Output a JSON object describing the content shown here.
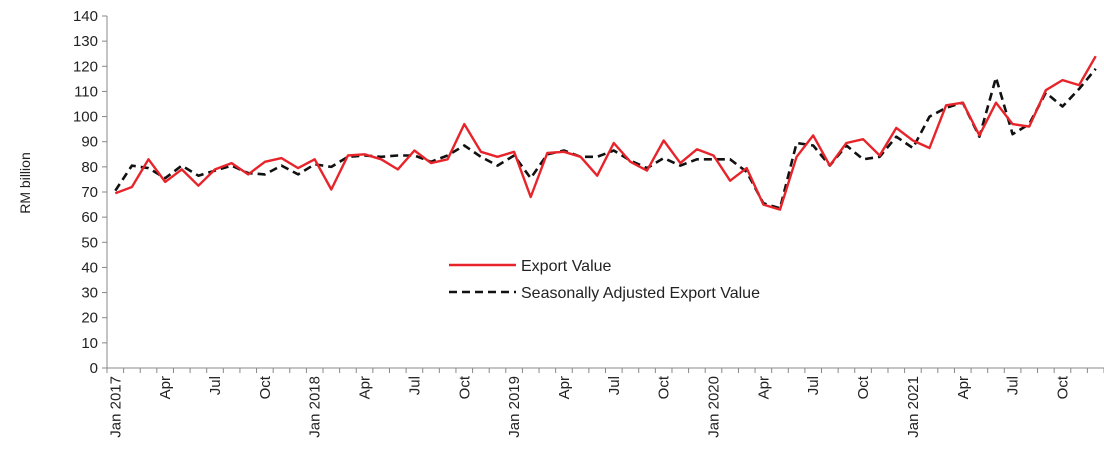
{
  "chart_data": {
    "type": "line",
    "title": "",
    "xlabel": "",
    "ylabel": "RM billion",
    "ylim": [
      0,
      140
    ],
    "yticks": [
      0,
      10,
      20,
      30,
      40,
      50,
      60,
      70,
      80,
      90,
      100,
      110,
      120,
      130,
      140
    ],
    "x_start": "Jan 2017",
    "x_ticks": [
      "Jan 2017",
      "Apr",
      "Jul",
      "Oct",
      "Jan 2018",
      "Apr",
      "Jul",
      "Oct",
      "Jan 2019",
      "Apr",
      "Jul",
      "Oct",
      "Jan 2020",
      "Apr",
      "Jul",
      "Oct",
      "Jan 2021",
      "Apr",
      "Jul",
      "Oct"
    ],
    "legend_position": "center",
    "grid": false,
    "series": [
      {
        "name": "Export Value",
        "color": "#e8242b",
        "style": "solid",
        "values": [
          69.5,
          72,
          83,
          74,
          79,
          72.5,
          79,
          81.5,
          77,
          82,
          83.5,
          79.5,
          83,
          71,
          84.5,
          85,
          83,
          79,
          86.5,
          81.5,
          83,
          97,
          86,
          84,
          86,
          68,
          85.5,
          86,
          84,
          76.5,
          89.5,
          82,
          78.5,
          90.5,
          81.5,
          87,
          84.5,
          74.5,
          79.5,
          65,
          63,
          84,
          92.5,
          80.5,
          89.5,
          91,
          84.5,
          95.5,
          90.5,
          87.5,
          104.5,
          105.5,
          92.5,
          105.5,
          97,
          96,
          110.5,
          114.5,
          112.5,
          124
        ]
      },
      {
        "name": "Seasonally Adjusted Export Value",
        "color": "#111111",
        "style": "dashed",
        "values": [
          70.5,
          80.5,
          79.5,
          75.5,
          80.5,
          76.5,
          78.5,
          80.5,
          77.5,
          77,
          80.5,
          77,
          81,
          80,
          84,
          84.5,
          84,
          84.5,
          84.5,
          82,
          84.5,
          88.5,
          84,
          80.5,
          84.5,
          75.5,
          85,
          86.5,
          84,
          84,
          86.5,
          82.5,
          79.5,
          83.5,
          80.5,
          83,
          83,
          83,
          78,
          65.5,
          63.5,
          89.5,
          88.5,
          80.5,
          88.5,
          83,
          84,
          92,
          87.5,
          100,
          103.5,
          105.5,
          92,
          115.5,
          93,
          97,
          109.5,
          104,
          111,
          119
        ]
      }
    ]
  }
}
